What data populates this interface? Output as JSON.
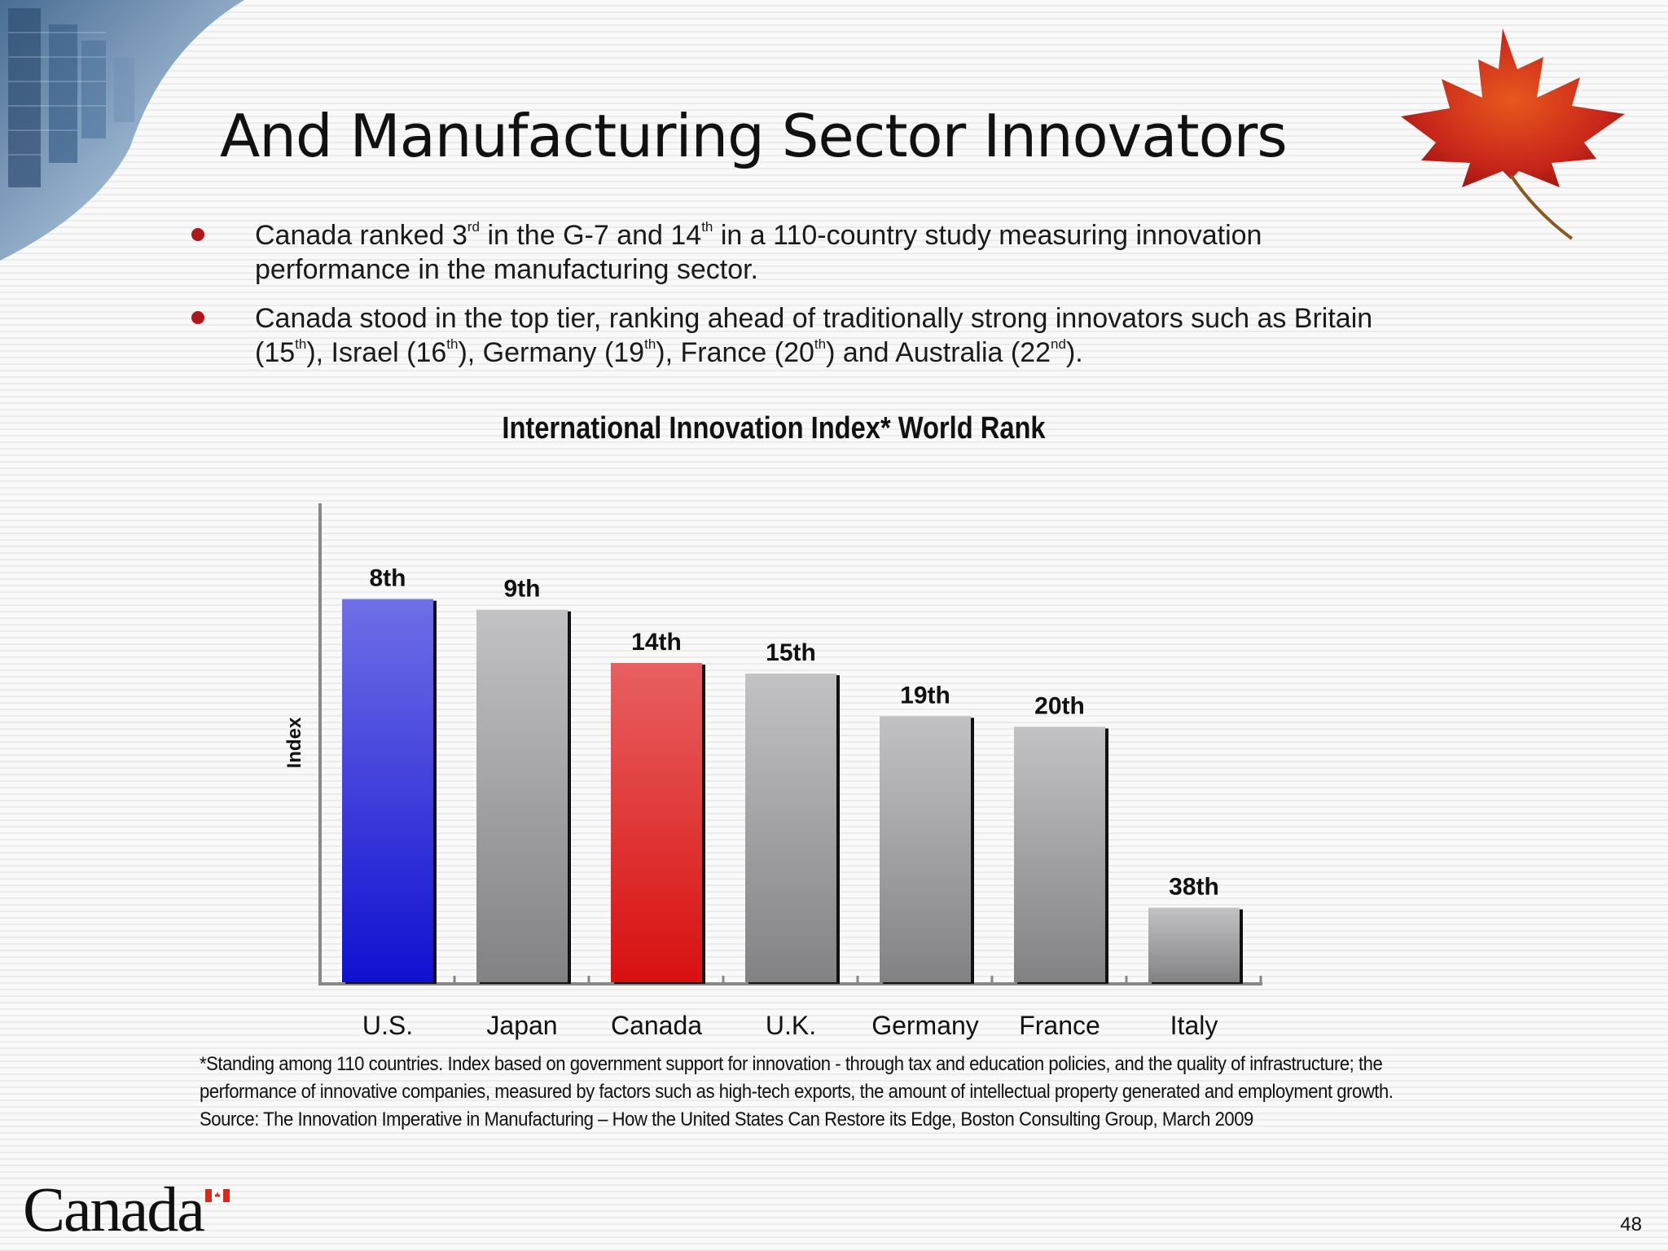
{
  "slide": {
    "title": "And Manufacturing Sector Innovators",
    "bullets": [
      {
        "p1": "Canada ranked 3",
        "s1": "rd",
        "p2": " in the G-7 and 14",
        "s2": "th",
        "p3": " in a 110-country study measuring innovation performance in the manufacturing sector."
      },
      {
        "p1": "Canada stood in the top tier, ranking ahead of traditionally strong innovators such as Britain (15",
        "s1": "th",
        "p2": "), Israel (16",
        "s2": "th",
        "p3": "), Germany (19",
        "s3": "th",
        "p4": "), France (20",
        "s4": "th",
        "p5": ") and Australia (22",
        "s5": "nd",
        "p6": ")."
      }
    ],
    "footnote": [
      "*Standing among 110 countries. Index based on government support for innovation - through tax and education policies, and the quality of infrastructure; the",
      "performance of innovative companies, measured by factors such as high-tech exports, the amount of intellectual property generated and employment growth.",
      "Source: The Innovation Imperative in Manufacturing – How the United States Can Restore its Edge, Boston Consulting Group, March 2009"
    ],
    "logo_text": "Canada",
    "page_number": "48",
    "icons": [
      "skyscraper-photo",
      "maple-leaf-icon",
      "canada-flag-icon"
    ],
    "colors": {
      "bullet_dot": "#b0161c",
      "us_bar": "#1a1ad0",
      "canada_bar": "#e01414",
      "other_bars": "#9a9a9a"
    }
  },
  "chart_data": {
    "type": "bar",
    "title": "International Innovation Index* World Rank",
    "ylabel": "Index",
    "xlabel": "",
    "categories": [
      "U.S.",
      "Japan",
      "Canada",
      "U.K.",
      "Germany",
      "France",
      "Italy"
    ],
    "values": [
      1.8,
      1.75,
      1.5,
      1.45,
      1.25,
      1.2,
      0.35
    ],
    "data_labels": [
      "8th",
      "9th",
      "14th",
      "15th",
      "19th",
      "20th",
      "38th"
    ],
    "bar_colors": [
      "blue",
      "gray",
      "red",
      "gray",
      "gray",
      "gray",
      "gray"
    ],
    "ylim": [
      0,
      2.25
    ],
    "grid": false,
    "legend": "none"
  }
}
